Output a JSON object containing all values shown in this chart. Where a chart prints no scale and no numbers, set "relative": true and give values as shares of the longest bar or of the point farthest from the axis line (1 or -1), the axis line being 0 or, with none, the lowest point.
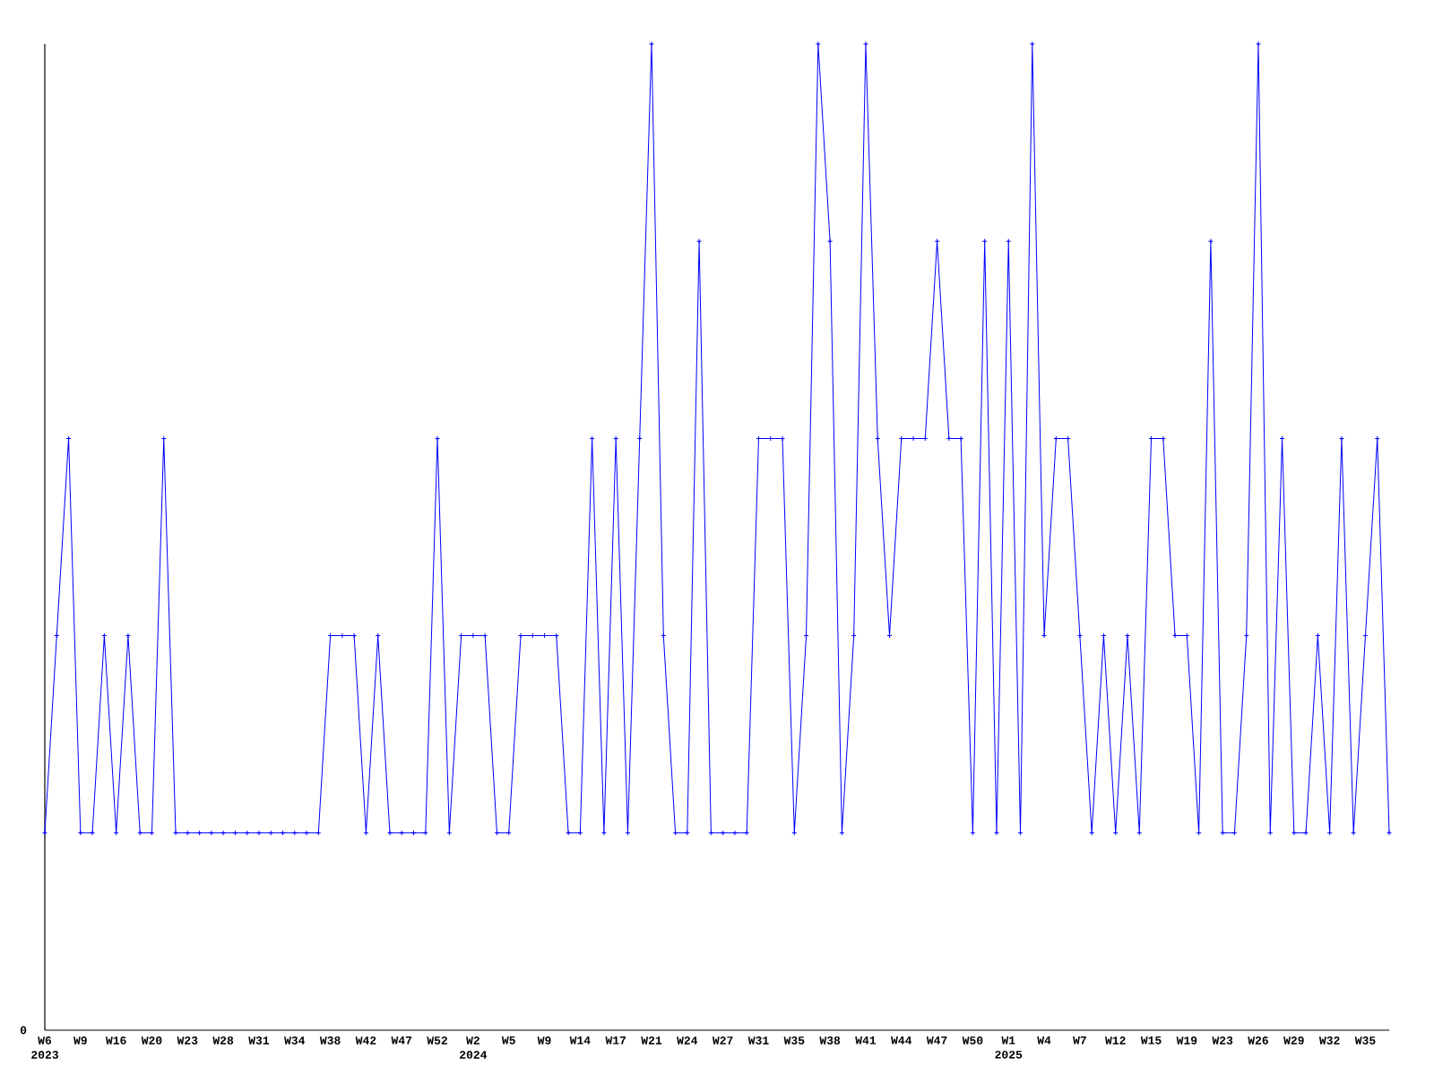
{
  "chart_data": {
    "type": "line",
    "relative": true,
    "marker": "cross",
    "line_style": "solid",
    "categories": [
      "W6 2023",
      null,
      null,
      "W9",
      null,
      null,
      "W16",
      null,
      null,
      "W20",
      null,
      null,
      "W23",
      null,
      null,
      "W28",
      null,
      null,
      "W31",
      null,
      null,
      "W34",
      null,
      null,
      "W38",
      null,
      null,
      "W42",
      null,
      null,
      "W47",
      null,
      null,
      "W52",
      null,
      null,
      "W2 2024",
      null,
      null,
      "W5",
      null,
      null,
      "W9",
      null,
      null,
      "W14",
      null,
      null,
      "W17",
      null,
      null,
      "W21",
      null,
      null,
      "W24",
      null,
      null,
      "W27",
      null,
      null,
      "W31",
      null,
      null,
      "W35",
      null,
      null,
      "W38",
      null,
      null,
      "W41",
      null,
      null,
      "W44",
      null,
      null,
      "W47",
      null,
      null,
      "W50",
      null,
      null,
      "W1 2025",
      null,
      null,
      "W4",
      null,
      null,
      "W7",
      null,
      null,
      "W12",
      null,
      null,
      "W15",
      null,
      null,
      "W19",
      null,
      null,
      "W23",
      null,
      null,
      "W26",
      null,
      null,
      "W29",
      null,
      null,
      "W32",
      null,
      null,
      "W35",
      null,
      null
    ],
    "series": [
      {
        "color": "#0000ff",
        "values": [
          0.2,
          0.4,
          0.6,
          0.2,
          0.2,
          0.4,
          0.2,
          0.4,
          0.2,
          0.2,
          0.6,
          0.2,
          0.2,
          0.2,
          0.2,
          0.2,
          0.2,
          0.2,
          0.2,
          0.2,
          0.2,
          0.2,
          0.2,
          0.2,
          0.4,
          0.4,
          0.4,
          0.2,
          0.4,
          0.2,
          0.2,
          0.2,
          0.2,
          0.6,
          0.2,
          0.4,
          0.4,
          0.4,
          0.2,
          0.2,
          0.4,
          0.4,
          0.4,
          0.4,
          0.2,
          0.2,
          0.6,
          0.2,
          0.6,
          0.2,
          0.6,
          1,
          0.4,
          0.2,
          0.2,
          0.8,
          0.2,
          0.2,
          0.2,
          0.2,
          0.6,
          0.6,
          0.6,
          0.2,
          0.4,
          1,
          0.8,
          0.2,
          0.4,
          1,
          0.6,
          0.4,
          0.6,
          0.6,
          0.6,
          0.8,
          0.6,
          0.6,
          0.2,
          0.8,
          0.2,
          0.8,
          0.2,
          1,
          0.4,
          0.6,
          0.6,
          0.4,
          0.2,
          0.4,
          0.2,
          0.4,
          0.2,
          0.6,
          0.6,
          0.4,
          0.4,
          0.2,
          0.8,
          0.2,
          0.2,
          0.4,
          1,
          0.2,
          0.6,
          0.2,
          0.2,
          0.4,
          0.2,
          0.6,
          0.2,
          0.4,
          0.6,
          0.2
        ]
      }
    ],
    "annotations": [
      "0"
    ]
  }
}
